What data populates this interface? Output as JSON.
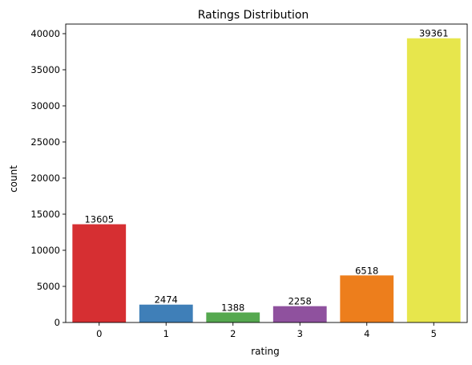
{
  "chart_data": {
    "type": "bar",
    "title": "Ratings Distribution",
    "xlabel": "rating",
    "ylabel": "count",
    "categories": [
      "0",
      "1",
      "2",
      "3",
      "4",
      "5"
    ],
    "values": [
      13605,
      2474,
      1388,
      2258,
      6518,
      39361
    ],
    "data_labels": [
      "13605",
      "2474",
      "1388",
      "2258",
      "6518",
      "39361"
    ],
    "colors": [
      "#d62f32",
      "#3f7fb8",
      "#55a84f",
      "#8f519e",
      "#ed7e1c",
      "#e7e64c"
    ],
    "ylim": [
      0,
      41330
    ],
    "yticks": [
      0,
      5000,
      10000,
      15000,
      20000,
      25000,
      30000,
      35000,
      40000
    ],
    "ytick_labels": [
      "0",
      "5000",
      "10000",
      "15000",
      "20000",
      "25000",
      "30000",
      "35000",
      "40000"
    ],
    "grid": false,
    "legend": "none"
  }
}
